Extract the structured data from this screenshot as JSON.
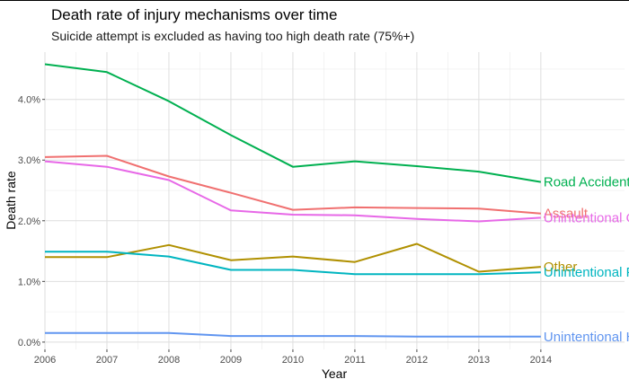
{
  "chart_data": {
    "type": "line",
    "title": "Death rate of injury mechanisms over time",
    "subtitle": "Suicide attempt is excluded as having too high death rate (75%+)",
    "xlabel": "Year",
    "ylabel": "Death rate",
    "x": [
      2006,
      2007,
      2008,
      2009,
      2010,
      2011,
      2012,
      2013,
      2014
    ],
    "x_ticks": [
      "2006",
      "2007",
      "2008",
      "2009",
      "2010",
      "2011",
      "2012",
      "2013",
      "2014"
    ],
    "y_ticks": [
      {
        "value": 0.0,
        "label": "0.0%"
      },
      {
        "value": 1.0,
        "label": "1.0%"
      },
      {
        "value": 2.0,
        "label": "2.0%"
      },
      {
        "value": 3.0,
        "label": "3.0%"
      },
      {
        "value": 4.0,
        "label": "4.0%"
      }
    ],
    "ylim": [
      -0.12,
      4.78
    ],
    "xlim": [
      2006,
      2015.35
    ],
    "grid": true,
    "legend": "direct labels at line ends",
    "series": [
      {
        "name": "Road Accident",
        "color": "#00b050",
        "values": [
          4.58,
          4.45,
          3.97,
          3.41,
          2.89,
          2.98,
          2.9,
          2.81,
          2.64
        ]
      },
      {
        "name": "Assault",
        "color": "#f07070",
        "values": [
          3.05,
          3.07,
          2.73,
          2.46,
          2.18,
          2.22,
          2.21,
          2.2,
          2.12
        ]
      },
      {
        "name": "Unintentional Other",
        "color": "#e768e7",
        "values": [
          2.98,
          2.89,
          2.67,
          2.17,
          2.1,
          2.09,
          2.03,
          1.99,
          2.05
        ]
      },
      {
        "name": "Other",
        "color": "#b09000",
        "values": [
          1.4,
          1.4,
          1.6,
          1.35,
          1.41,
          1.32,
          1.62,
          1.16,
          1.24
        ]
      },
      {
        "name": "Unintentional Fall",
        "color": "#00b5c0",
        "values": [
          1.49,
          1.49,
          1.41,
          1.19,
          1.19,
          1.12,
          1.12,
          1.12,
          1.15
        ]
      },
      {
        "name": "Unintentional Hit",
        "color": "#6095f0",
        "values": [
          0.15,
          0.15,
          0.15,
          0.1,
          0.1,
          0.1,
          0.09,
          0.09,
          0.09
        ]
      }
    ]
  }
}
